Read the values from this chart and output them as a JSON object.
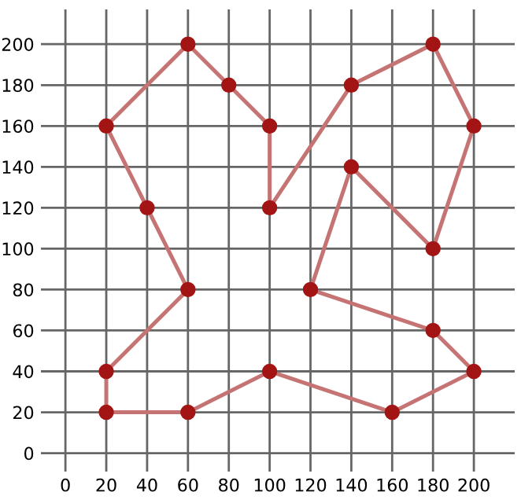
{
  "chart_data": {
    "type": "line",
    "series": [
      {
        "color": "#c57373",
        "x": [
          60,
          80
        ],
        "values": [
          200,
          180
        ]
      },
      {
        "color": "#c57373",
        "x": [
          80,
          100
        ],
        "values": [
          180,
          160
        ]
      },
      {
        "color": "#c57373",
        "x": [
          100,
          100
        ],
        "values": [
          160,
          120
        ]
      },
      {
        "color": "#c57373",
        "x": [
          100,
          140
        ],
        "values": [
          120,
          180
        ]
      },
      {
        "color": "#c57373",
        "x": [
          140,
          180
        ],
        "values": [
          180,
          200
        ]
      },
      {
        "color": "#c57373",
        "x": [
          180,
          200
        ],
        "values": [
          200,
          160
        ]
      },
      {
        "color": "#c57373",
        "x": [
          200,
          180
        ],
        "values": [
          160,
          100
        ]
      },
      {
        "color": "#c57373",
        "x": [
          180,
          140
        ],
        "values": [
          100,
          140
        ]
      },
      {
        "color": "#c57373",
        "x": [
          140,
          120
        ],
        "values": [
          140,
          80
        ]
      },
      {
        "color": "#c57373",
        "x": [
          120,
          180
        ],
        "values": [
          80,
          60
        ]
      },
      {
        "color": "#c57373",
        "x": [
          180,
          200
        ],
        "values": [
          60,
          40
        ]
      },
      {
        "color": "#c57373",
        "x": [
          200,
          160
        ],
        "values": [
          40,
          20
        ]
      },
      {
        "color": "#c57373",
        "x": [
          160,
          100
        ],
        "values": [
          20,
          40
        ]
      },
      {
        "color": "#c57373",
        "x": [
          100,
          60
        ],
        "values": [
          40,
          20
        ]
      },
      {
        "color": "#c57373",
        "x": [
          60,
          20
        ],
        "values": [
          20,
          20
        ]
      },
      {
        "color": "#c57373",
        "x": [
          20,
          20
        ],
        "values": [
          20,
          40
        ]
      },
      {
        "color": "#c57373",
        "x": [
          20,
          60
        ],
        "values": [
          40,
          80
        ]
      },
      {
        "color": "#c57373",
        "x": [
          60,
          40
        ],
        "values": [
          80,
          120
        ]
      },
      {
        "color": "#c57373",
        "x": [
          40,
          20
        ],
        "values": [
          120,
          160
        ]
      },
      {
        "color": "#c57373",
        "x": [
          20,
          60
        ],
        "values": [
          160,
          200
        ]
      },
      {
        "type": "scatter",
        "color": "#a31515",
        "marker": "circle",
        "x": [
          60,
          80,
          100,
          100,
          140,
          180,
          200,
          180,
          140,
          120,
          180,
          200,
          160,
          100,
          60,
          20,
          20,
          60,
          40,
          20
        ],
        "values": [
          200,
          180,
          160,
          120,
          180,
          200,
          160,
          100,
          140,
          80,
          60,
          40,
          20,
          40,
          20,
          20,
          40,
          80,
          120,
          160
        ]
      }
    ],
    "xlim": [
      -12,
      220
    ],
    "ylim": [
      -9,
      217
    ],
    "xticks": [
      0,
      20,
      40,
      60,
      80,
      100,
      120,
      140,
      160,
      180,
      200
    ],
    "yticks": [
      0,
      20,
      40,
      60,
      80,
      100,
      120,
      140,
      160,
      180,
      200
    ],
    "grid": true
  }
}
